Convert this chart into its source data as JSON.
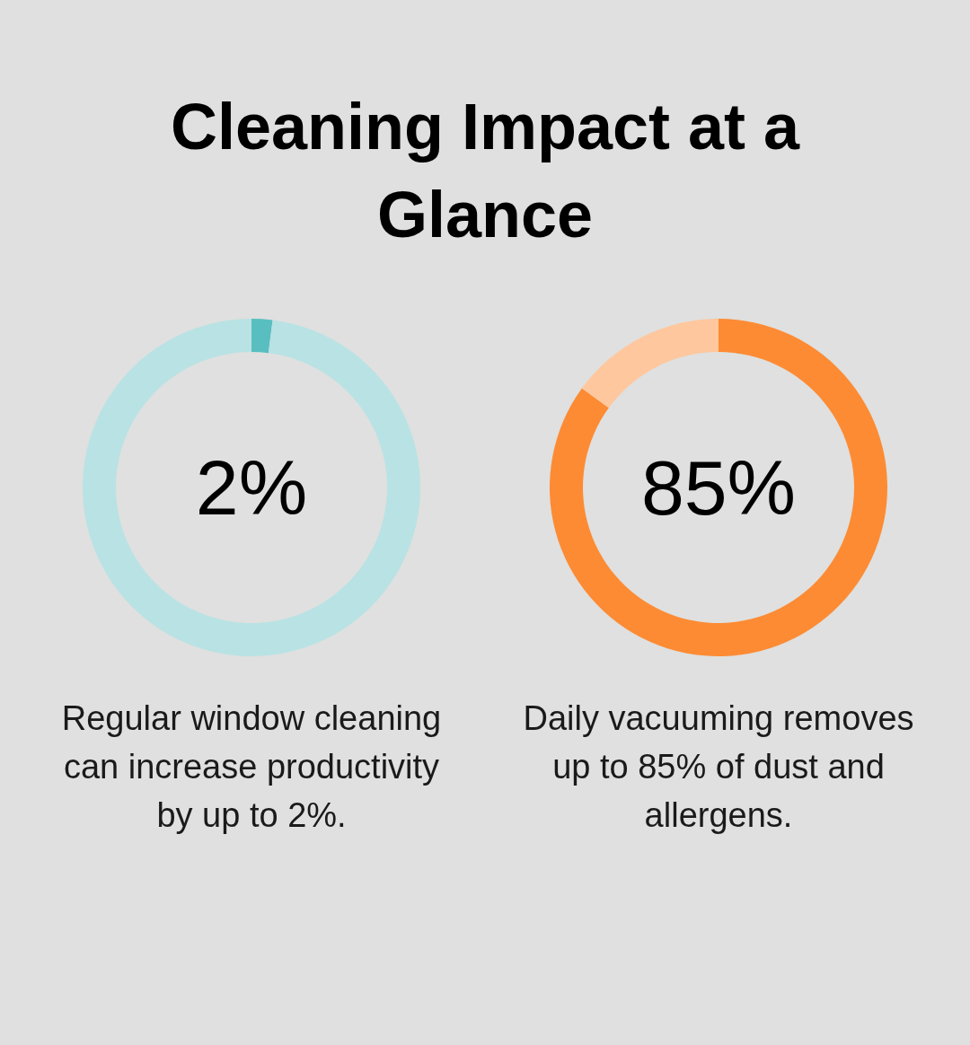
{
  "chart_data": [
    {
      "type": "donut",
      "title": "Cleaning Impact at a Glance",
      "categories": [
        null,
        null
      ],
      "values": [
        2,
        98
      ],
      "colors": [
        "#59bec0",
        "#b9e2e4"
      ],
      "value_labels": [
        "2%",
        null
      ],
      "annotations": [
        "Regular window cleaning can increase productivity by up to 2%."
      ]
    },
    {
      "type": "donut",
      "categories": [
        null,
        null
      ],
      "values": [
        85,
        15
      ],
      "colors": [
        "#fd8b34",
        "#fec79d"
      ],
      "value_labels": [
        "85%",
        null
      ],
      "annotations": [
        "Daily vacuuming removes up to 85% of dust and allergens."
      ]
    }
  ]
}
